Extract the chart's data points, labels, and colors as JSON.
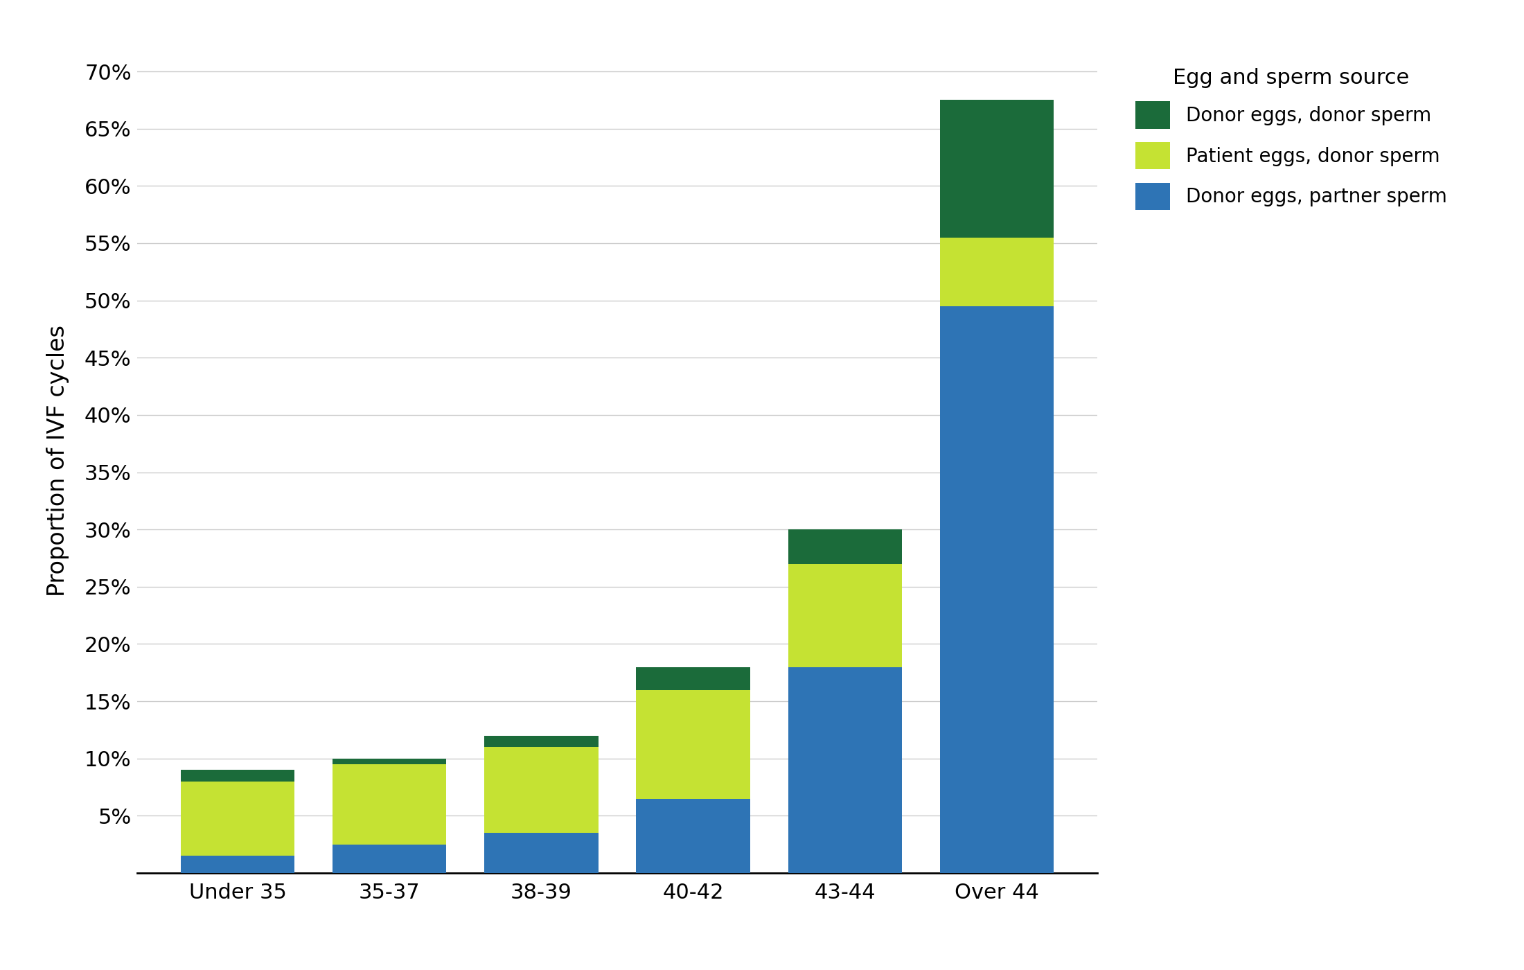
{
  "categories": [
    "Under 35",
    "35-37",
    "38-39",
    "40-42",
    "43-44",
    "Over 44"
  ],
  "donor_eggs_partner_sperm": [
    1.5,
    2.5,
    3.5,
    6.5,
    18.0,
    49.5
  ],
  "patient_eggs_donor_sperm": [
    6.5,
    7.0,
    7.5,
    9.5,
    9.0,
    6.0
  ],
  "donor_eggs_donor_sperm": [
    1.0,
    0.5,
    1.0,
    2.0,
    3.0,
    12.0
  ],
  "color_blue": "#2E74B5",
  "color_yellow": "#C5E233",
  "color_green": "#1B6B3A",
  "ylabel": "Proportion of IVF cycles",
  "legend_title": "Egg and sperm source",
  "legend_labels": [
    "Donor eggs, donor sperm",
    "Patient eggs, donor sperm",
    "Donor eggs, partner sperm"
  ],
  "yticks": [
    5,
    10,
    15,
    20,
    25,
    30,
    35,
    40,
    45,
    50,
    55,
    60,
    65,
    70
  ],
  "ylim": [
    0,
    72
  ],
  "background_color": "#FFFFFF",
  "grid_color": "#CCCCCC",
  "bar_width": 0.75
}
